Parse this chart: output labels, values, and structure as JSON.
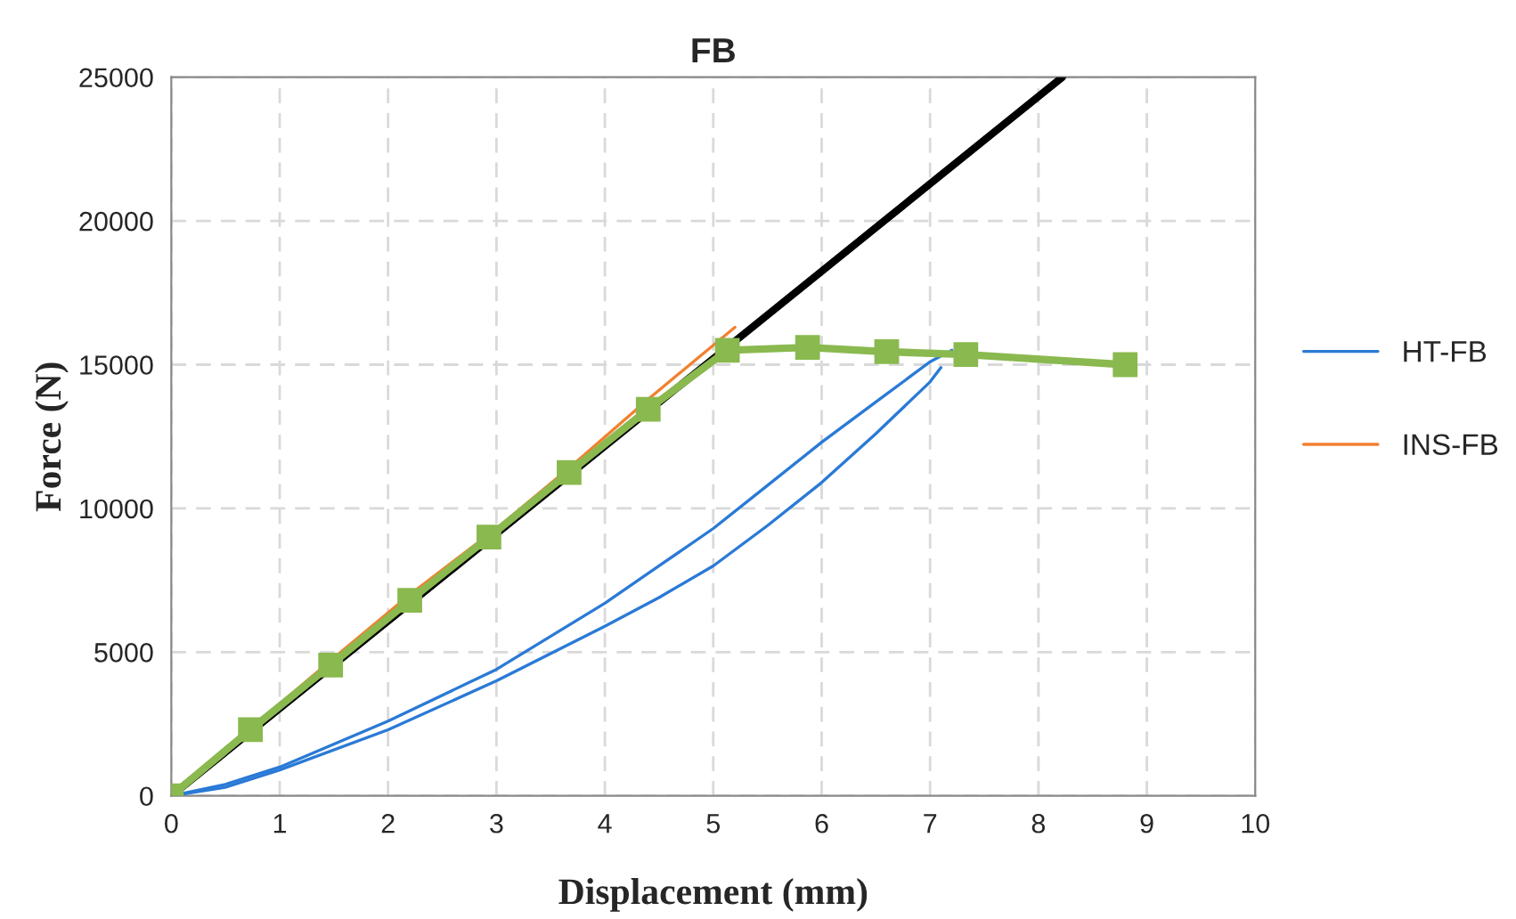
{
  "chart_data": {
    "type": "line",
    "title": "FB",
    "xlabel": "Displacement (mm)",
    "ylabel": "Force (N)",
    "xlim": [
      0,
      10
    ],
    "xticks": [
      0,
      1,
      2,
      3,
      4,
      5,
      6,
      7,
      8,
      9,
      10
    ],
    "ylim": [
      0,
      25000
    ],
    "yticks": [
      0,
      5000,
      10000,
      15000,
      20000,
      25000
    ],
    "grid": true,
    "legend": "right",
    "series": [
      {
        "name": "HT-FB",
        "color": "#2a7ad6",
        "marker": "none",
        "x": [
          0,
          0.5,
          1,
          2,
          3,
          4,
          4.5,
          5,
          5.5,
          6,
          6.5,
          7,
          7.2
        ],
        "values": [
          0,
          400,
          1000,
          2600,
          4400,
          6700,
          8000,
          9300,
          10800,
          12300,
          13700,
          15100,
          15500
        ]
      },
      {
        "color": "#2a7ad6",
        "marker": "none",
        "x": [
          0,
          0.5,
          1,
          2,
          3,
          4,
          4.5,
          5,
          5.5,
          6,
          6.5,
          7,
          7.1
        ],
        "values": [
          0,
          300,
          900,
          2300,
          4000,
          5900,
          6900,
          8000,
          9400,
          10900,
          12600,
          14400,
          14900
        ]
      },
      {
        "name": "INS-FB",
        "color": "#f28030",
        "marker": "none",
        "x": [
          0,
          0.75,
          1.5,
          2.2,
          3,
          3.7,
          4.4,
          5.2
        ],
        "values": [
          0,
          2400,
          4800,
          7000,
          9300,
          11500,
          13800,
          16300
        ]
      },
      {
        "color": "#000000",
        "marker": "none",
        "x": [
          0,
          8.22
        ],
        "values": [
          0,
          25000
        ]
      },
      {
        "color": "#8ab94f",
        "marker": "square",
        "x": [
          0,
          0.73,
          1.47,
          2.2,
          2.93,
          3.67,
          4.4,
          5.13,
          5.87,
          6.6,
          7.33,
          8.8
        ],
        "values": [
          0,
          2300,
          4550,
          6800,
          9000,
          11250,
          13450,
          15500,
          15600,
          15450,
          15350,
          15000
        ]
      }
    ]
  }
}
